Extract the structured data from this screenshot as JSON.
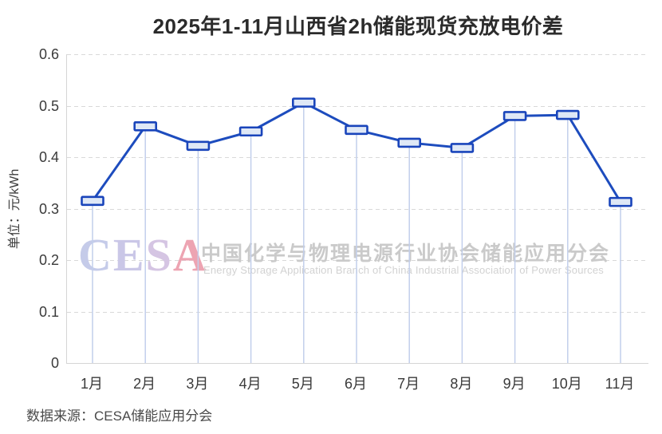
{
  "title": "2025年1-11月山西省2h储能现货充放电价差",
  "source_note": "数据来源：CESA储能应用分会",
  "watermark": {
    "logo_letters": [
      {
        "char": "C",
        "color": "#c5cbe9"
      },
      {
        "char": "E",
        "color": "#cac7e7"
      },
      {
        "char": "S",
        "color": "#d5c5e3"
      },
      {
        "char": "A",
        "color": "#eda4b2"
      }
    ],
    "cn_text": "中国化学与物理电源行业协会储能应用分会",
    "en_text": "Energy Storage Application Branch of China Industrial Association of Power Sources"
  },
  "chart_data": {
    "type": "line",
    "title": "2025年1-11月山西省2h储能现货充放电价差",
    "categories": [
      "1月",
      "2月",
      "3月",
      "4月",
      "5月",
      "6月",
      "7月",
      "8月",
      "9月",
      "10月",
      "11月"
    ],
    "values": [
      0.315,
      0.46,
      0.422,
      0.45,
      0.506,
      0.453,
      0.428,
      0.418,
      0.48,
      0.482,
      0.313
    ],
    "xlabel": "",
    "ylabel": "单位：元/kWh",
    "ylim": [
      0,
      0.6
    ],
    "yticks": [
      0,
      0.1,
      0.2,
      0.3,
      0.4,
      0.5,
      0.6
    ],
    "grid": "horizontal-dashed",
    "legend": "none",
    "marker": "horizontal-dash",
    "colors": {
      "line": "#1d4cbe",
      "marker_border": "#1a45bb",
      "marker_fill": "#dfe8f6",
      "drop_line": "#c2cfec",
      "gridline": "#d9d9d9"
    }
  }
}
